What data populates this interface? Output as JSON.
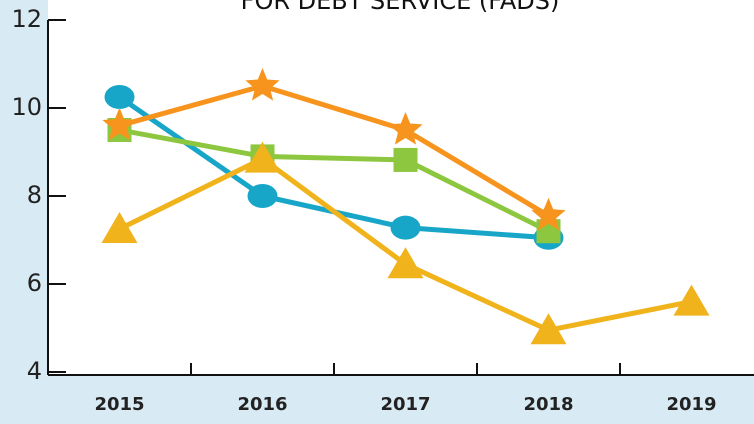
{
  "chart_data": {
    "type": "line",
    "title": "FOR DEBT SERVICE (FADS)",
    "categories": [
      "2015",
      "2016",
      "2017",
      "2018",
      "2019"
    ],
    "series": [
      {
        "color": "#18a6c8",
        "marker": "circle",
        "values": [
          10.25,
          8.0,
          7.28,
          7.05,
          null
        ]
      },
      {
        "color": "#8dc63f",
        "marker": "square",
        "values": [
          9.5,
          8.9,
          8.82,
          7.2,
          null
        ]
      },
      {
        "color": "#f7941d",
        "marker": "star",
        "values": [
          9.6,
          10.5,
          9.5,
          7.55,
          null
        ]
      },
      {
        "color": "#f0b31b",
        "marker": "triangle",
        "values": [
          7.25,
          8.85,
          6.45,
          4.95,
          5.6
        ]
      }
    ],
    "ylim": [
      4,
      12
    ],
    "yticks": [
      4,
      6,
      8,
      10,
      12
    ]
  }
}
